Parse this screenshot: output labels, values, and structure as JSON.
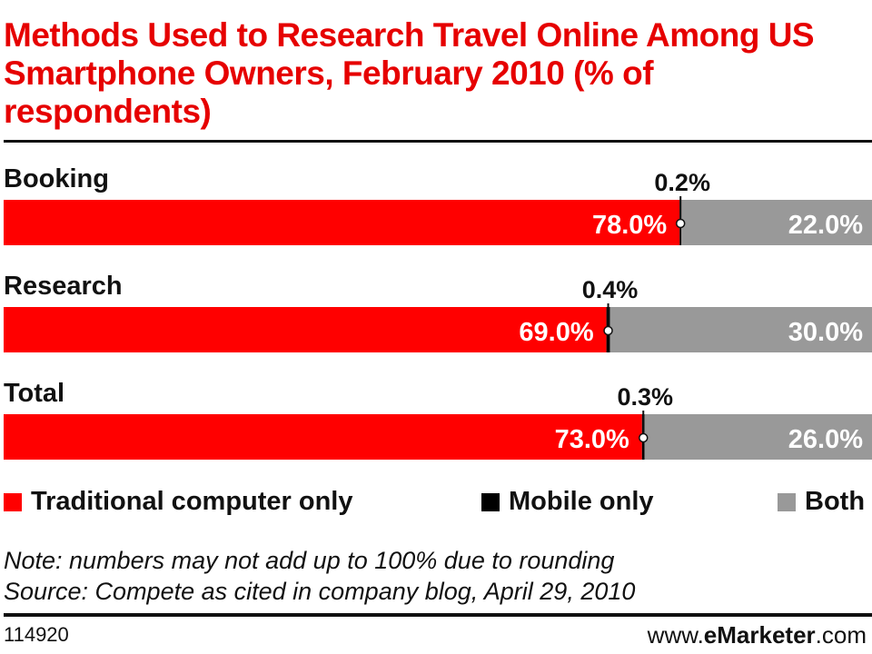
{
  "title": "Methods Used to Research Travel Online Among US Smartphone Owners, February 2010 (% of respondents)",
  "chart_data": {
    "type": "bar",
    "orientation": "horizontal",
    "stacked": true,
    "categories": [
      "Booking",
      "Research",
      "Total"
    ],
    "series": [
      {
        "name": "Traditional computer only",
        "values": [
          78.0,
          69.0,
          73.0
        ],
        "color": "#ff0000"
      },
      {
        "name": "Mobile only",
        "values": [
          0.2,
          0.4,
          0.3
        ],
        "color": "#000000"
      },
      {
        "name": "Both",
        "values": [
          22.0,
          30.0,
          26.0
        ],
        "color": "#999999"
      }
    ],
    "labels": [
      [
        "78.0%",
        "0.2%",
        "22.0%"
      ],
      [
        "69.0%",
        "0.4%",
        "30.0%"
      ],
      [
        "73.0%",
        "0.3%",
        "26.0%"
      ]
    ],
    "xlim": [
      0,
      100
    ],
    "legend_position": "bottom"
  },
  "notes": [
    "Note: numbers may not add up to 100% due to rounding",
    "Source: Compete as cited in company blog, April 29, 2010"
  ],
  "chart_id": "114920",
  "site": {
    "prefix": "www.",
    "brand": "eMarketer",
    "suffix": ".com"
  }
}
